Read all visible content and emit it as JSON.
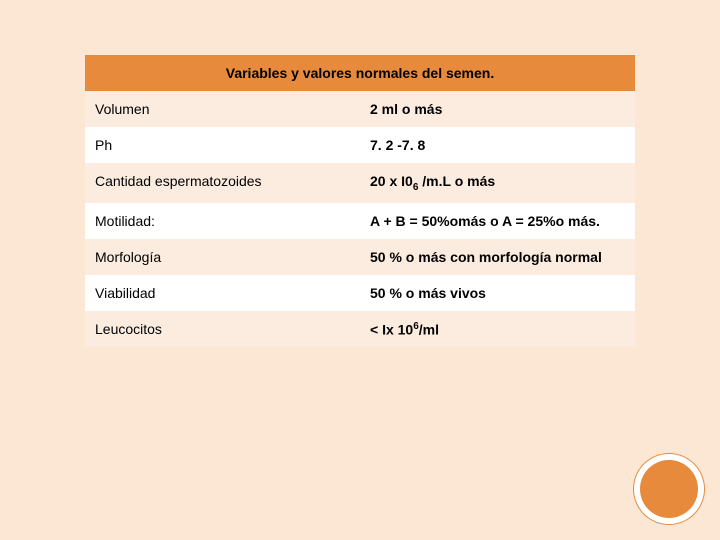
{
  "table": {
    "header": "Variables y valores normales del semen.",
    "header_bg": "#e78a3c",
    "even_bg": "#fcece0",
    "odd_bg": "#ffffff",
    "page_bg": "#fce6d4",
    "font_size_main": 14,
    "font_size_sub": 10,
    "rows": [
      {
        "label": "Volumen",
        "value": "2 ml o más"
      },
      {
        "label": "Ph",
        "value": "7. 2 -7. 8"
      },
      {
        "label": "Cantidad espermatozoides",
        "value_html": "20 x I0<sub>6</sub> /m.L o más"
      },
      {
        "label": "Motilidad:",
        "value": "A + B = 50%omás o A = 25%o más."
      },
      {
        "label": "Morfología",
        "value": "50 % o más con morfología normal"
      },
      {
        "label": "Viabilidad",
        "value": "50 % o más vivos"
      },
      {
        "label": "Leucocitos",
        "value_html": "< Ix 10<sup>6</sup>/ml"
      }
    ]
  },
  "decoration": {
    "circle_fill": "#e78a3c",
    "circle_ring": "#ffffff"
  }
}
